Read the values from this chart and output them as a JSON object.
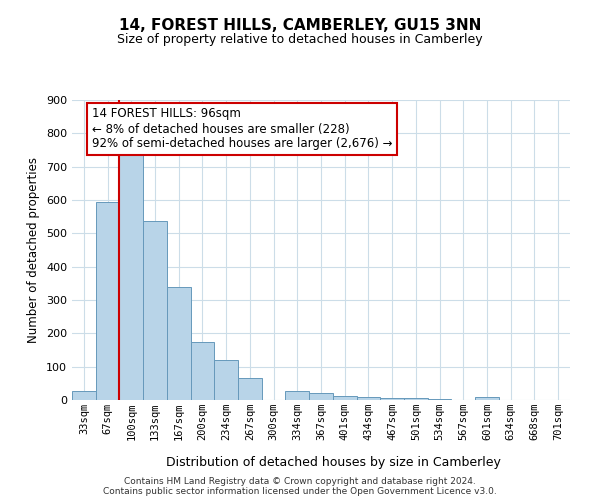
{
  "title": "14, FOREST HILLS, CAMBERLEY, GU15 3NN",
  "subtitle": "Size of property relative to detached houses in Camberley",
  "xlabel": "Distribution of detached houses by size in Camberley",
  "ylabel": "Number of detached properties",
  "bar_labels": [
    "33sqm",
    "67sqm",
    "100sqm",
    "133sqm",
    "167sqm",
    "200sqm",
    "234sqm",
    "267sqm",
    "300sqm",
    "334sqm",
    "367sqm",
    "401sqm",
    "434sqm",
    "467sqm",
    "501sqm",
    "534sqm",
    "567sqm",
    "601sqm",
    "634sqm",
    "668sqm",
    "701sqm"
  ],
  "bar_values": [
    27,
    595,
    740,
    537,
    338,
    175,
    120,
    65,
    0,
    27,
    20,
    12,
    8,
    6,
    5,
    4,
    0,
    8,
    0,
    0,
    0
  ],
  "bar_color": "#b8d4e8",
  "bar_edge_color": "#6699bb",
  "vline_color": "#cc0000",
  "vline_pos": 1.97,
  "ylim": [
    0,
    900
  ],
  "yticks": [
    0,
    100,
    200,
    300,
    400,
    500,
    600,
    700,
    800,
    900
  ],
  "annotation_text_line1": "14 FOREST HILLS: 96sqm",
  "annotation_text_line2": "← 8% of detached houses are smaller (228)",
  "annotation_text_line3": "92% of semi-detached houses are larger (2,676) →",
  "footer_line1": "Contains HM Land Registry data © Crown copyright and database right 2024.",
  "footer_line2": "Contains public sector information licensed under the Open Government Licence v3.0.",
  "background_color": "#ffffff",
  "grid_color": "#ccdde8"
}
